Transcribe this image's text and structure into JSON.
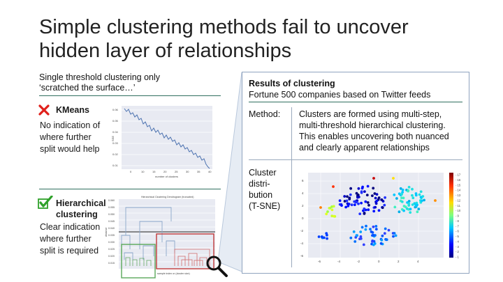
{
  "slide": {
    "title_line1": "Simple clustering methods fail to uncover",
    "title_line2": "hidden layer of relationships",
    "subtitle_line1": "Single threshold clustering only",
    "subtitle_line2": "‘scratched the surface…’"
  },
  "kmeans": {
    "heading": "KMeans",
    "desc": [
      "No indication of",
      "where further",
      "split would help"
    ],
    "plot": {
      "xlabel": "number of clusters",
      "ylabel": "SSE",
      "yticks": [
        "0.06",
        "0.05",
        "0.04",
        "0.03",
        "0.02",
        "0.01"
      ],
      "xticks": [
        "0",
        "10",
        "15",
        "20",
        "25",
        "30",
        "35",
        "40"
      ]
    }
  },
  "hierarchical": {
    "heading_line1": "Hierarchical",
    "heading_line2": "clustering",
    "desc": [
      "Clear indication",
      "where further",
      "split is required"
    ],
    "plot": {
      "title": "Hierarchical Clustering Dendrogram (truncated)",
      "ylabel": "distance",
      "xlabel": "sample index or (cluster size)",
      "yticks": [
        "0.060",
        "0.055",
        "0.050",
        "0.045",
        "0.040",
        "0.035",
        "0.030",
        "0.025",
        "0.020",
        "0.015"
      ]
    }
  },
  "results": {
    "heading": "Results of clustering",
    "subheading": "Fortune 500 companies based on Twitter feeds",
    "method_label": "Method:",
    "method_text": [
      "Clusters are formed using multi-step,",
      "multi-threshold hierarchical clustering.",
      "This enables uncovering both nuanced",
      "and clearly apparent relationships"
    ],
    "dist_label": [
      "Cluster",
      "distri-",
      "bution",
      "(T-SNE)"
    ],
    "scatter": {
      "yticks": [
        "6",
        "4",
        "2",
        "0",
        "-2",
        "-4",
        "-6"
      ],
      "xticks": [
        "-6",
        "-4",
        "-2",
        "0",
        "2",
        "4"
      ],
      "colorbar": [
        "17",
        "16",
        "15",
        "14",
        "13",
        "12",
        "11",
        "10",
        "9",
        "8",
        "7",
        "6",
        "5",
        "4",
        "3",
        "2",
        "1"
      ]
    }
  },
  "colors": {
    "cross": "#e0201b",
    "check": "#2fa12a",
    "accent_line": "#2f6f5f",
    "panel_border": "#8fa3bf"
  },
  "icons": [
    "close-icon",
    "checkmark-icon",
    "magnifier-icon"
  ]
}
